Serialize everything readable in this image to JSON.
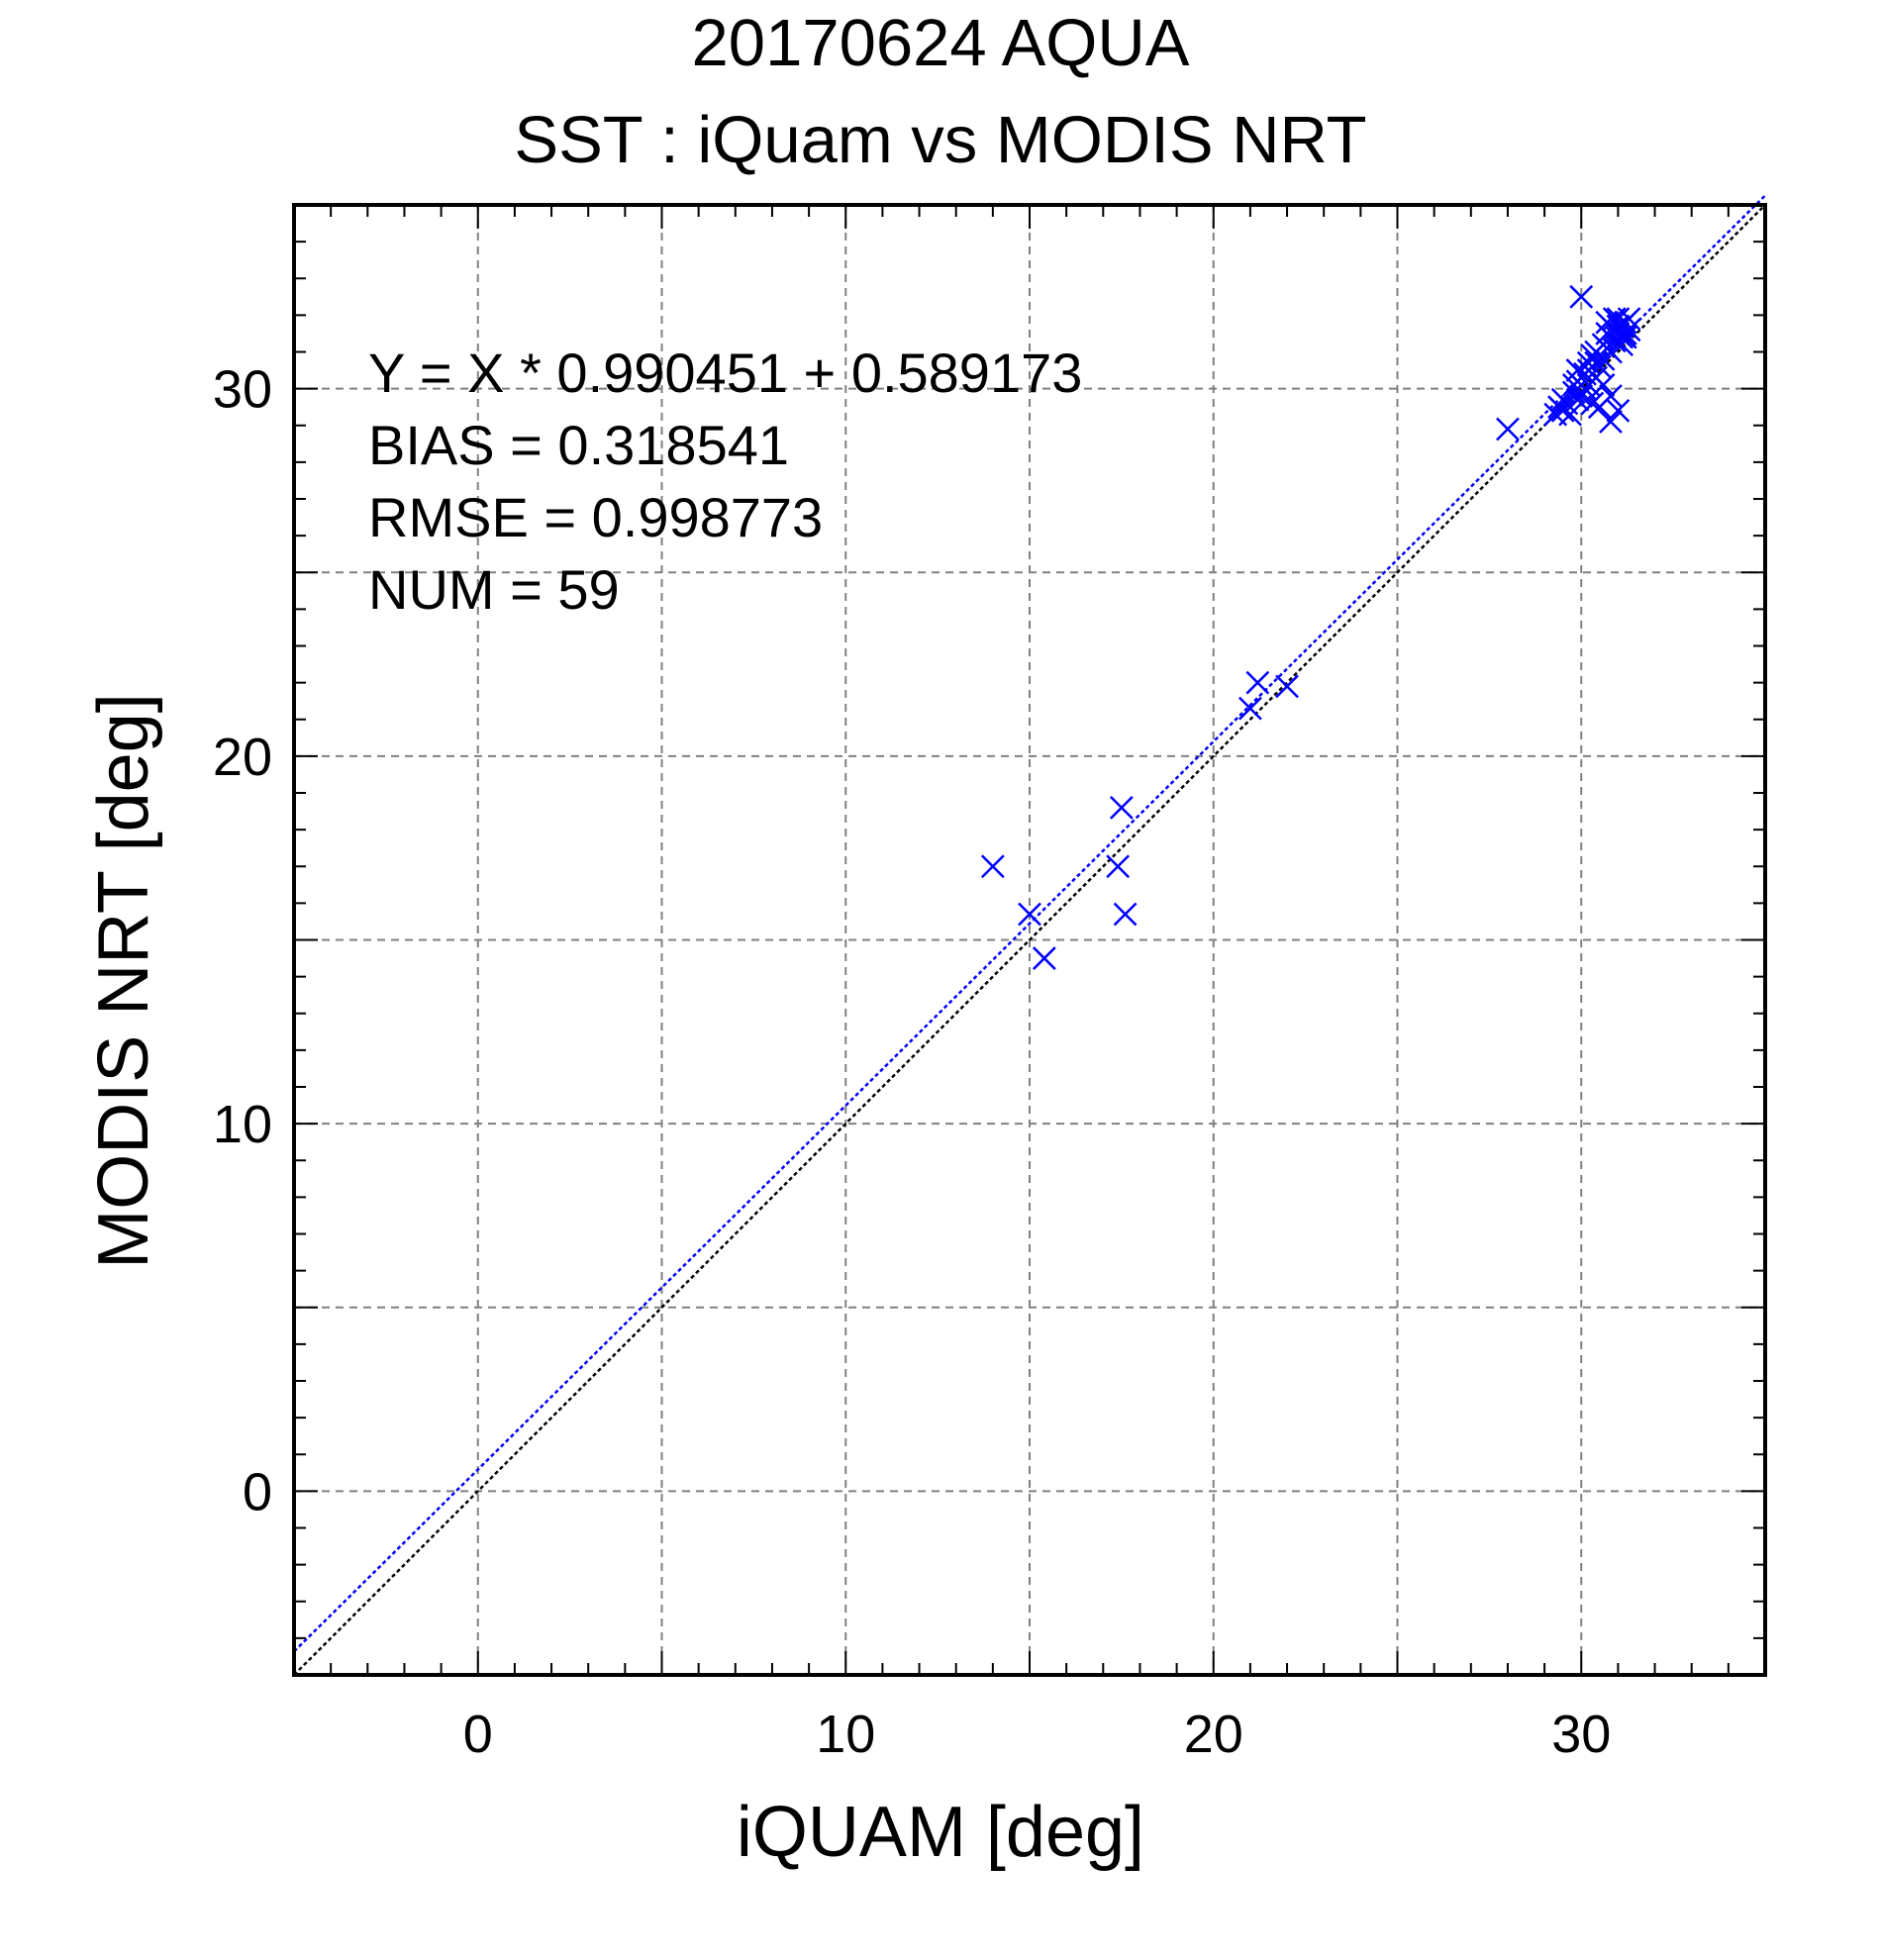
{
  "title": {
    "line1": "20170624 AQUA",
    "line2": "SST : iQuam vs MODIS NRT"
  },
  "stats": {
    "equation": "Y = X * 0.990451 + 0.589173",
    "bias": "BIAS = 0.318541",
    "rmse": "RMSE = 0.998773",
    "num": "NUM = 59"
  },
  "colors": {
    "points": "#0000ff",
    "fit_line": "#0000ff",
    "identity_line": "#000000",
    "grid": "#808080"
  },
  "chart_data": {
    "type": "scatter",
    "title": "20170624 AQUA SST : iQuam vs MODIS NRT",
    "xlabel": "iQUAM [deg]",
    "ylabel": "MODIS NRT [deg]",
    "xlim": [
      -5,
      35
    ],
    "ylim": [
      -5,
      35
    ],
    "xticks": [
      0,
      10,
      20,
      30
    ],
    "yticks": [
      0,
      10,
      20,
      30
    ],
    "grid": true,
    "grid_step": 5,
    "marker": "x",
    "fit": {
      "slope": 0.990451,
      "intercept": 0.589173
    },
    "identity_line": true,
    "series": [
      {
        "values": [
          [
            14.0,
            17.0
          ],
          [
            15.0,
            15.7
          ],
          [
            15.4,
            14.5
          ],
          [
            17.4,
            17.0
          ],
          [
            17.5,
            18.6
          ],
          [
            17.6,
            15.7
          ],
          [
            21.0,
            21.3
          ],
          [
            21.2,
            22.0
          ],
          [
            22.0,
            21.9
          ],
          [
            28.0,
            28.9
          ],
          [
            29.3,
            29.3
          ],
          [
            29.4,
            29.5
          ],
          [
            29.5,
            29.4
          ],
          [
            29.6,
            29.6
          ],
          [
            29.7,
            29.3
          ],
          [
            29.8,
            29.9
          ],
          [
            29.9,
            30.2
          ],
          [
            29.9,
            30.5
          ],
          [
            30.0,
            32.5
          ],
          [
            30.0,
            29.8
          ],
          [
            30.1,
            30.4
          ],
          [
            30.2,
            30.1
          ],
          [
            30.2,
            30.7
          ],
          [
            30.3,
            29.6
          ],
          [
            30.3,
            30.9
          ],
          [
            30.4,
            30.3
          ],
          [
            30.4,
            31.0
          ],
          [
            30.5,
            30.6
          ],
          [
            30.5,
            29.5
          ],
          [
            30.6,
            31.2
          ],
          [
            30.6,
            30.1
          ],
          [
            30.7,
            31.5
          ],
          [
            30.7,
            31.8
          ],
          [
            30.8,
            31.0
          ],
          [
            30.8,
            29.8
          ],
          [
            30.8,
            29.1
          ],
          [
            30.9,
            31.6
          ],
          [
            30.9,
            31.3
          ],
          [
            31.0,
            31.9
          ],
          [
            31.0,
            31.5
          ],
          [
            31.0,
            29.4
          ],
          [
            31.1,
            31.7
          ],
          [
            31.1,
            31.2
          ],
          [
            31.2,
            31.8
          ],
          [
            31.2,
            31.5
          ],
          [
            31.3,
            31.6
          ],
          [
            31.3,
            31.9
          ],
          [
            30.2,
            30.5
          ],
          [
            29.9,
            29.7
          ],
          [
            30.6,
            30.8
          ],
          [
            31.1,
            31.4
          ],
          [
            29.5,
            29.7
          ],
          [
            30.4,
            30.7
          ],
          [
            30.9,
            31.9
          ],
          [
            31.2,
            31.4
          ],
          [
            30.1,
            30.0
          ],
          [
            30.7,
            31.1
          ],
          [
            29.8,
            30.1
          ],
          [
            31.0,
            31.7
          ]
        ]
      }
    ]
  },
  "axis_labels": {
    "x": "iQUAM [deg]",
    "y": "MODIS NRT [deg]"
  }
}
